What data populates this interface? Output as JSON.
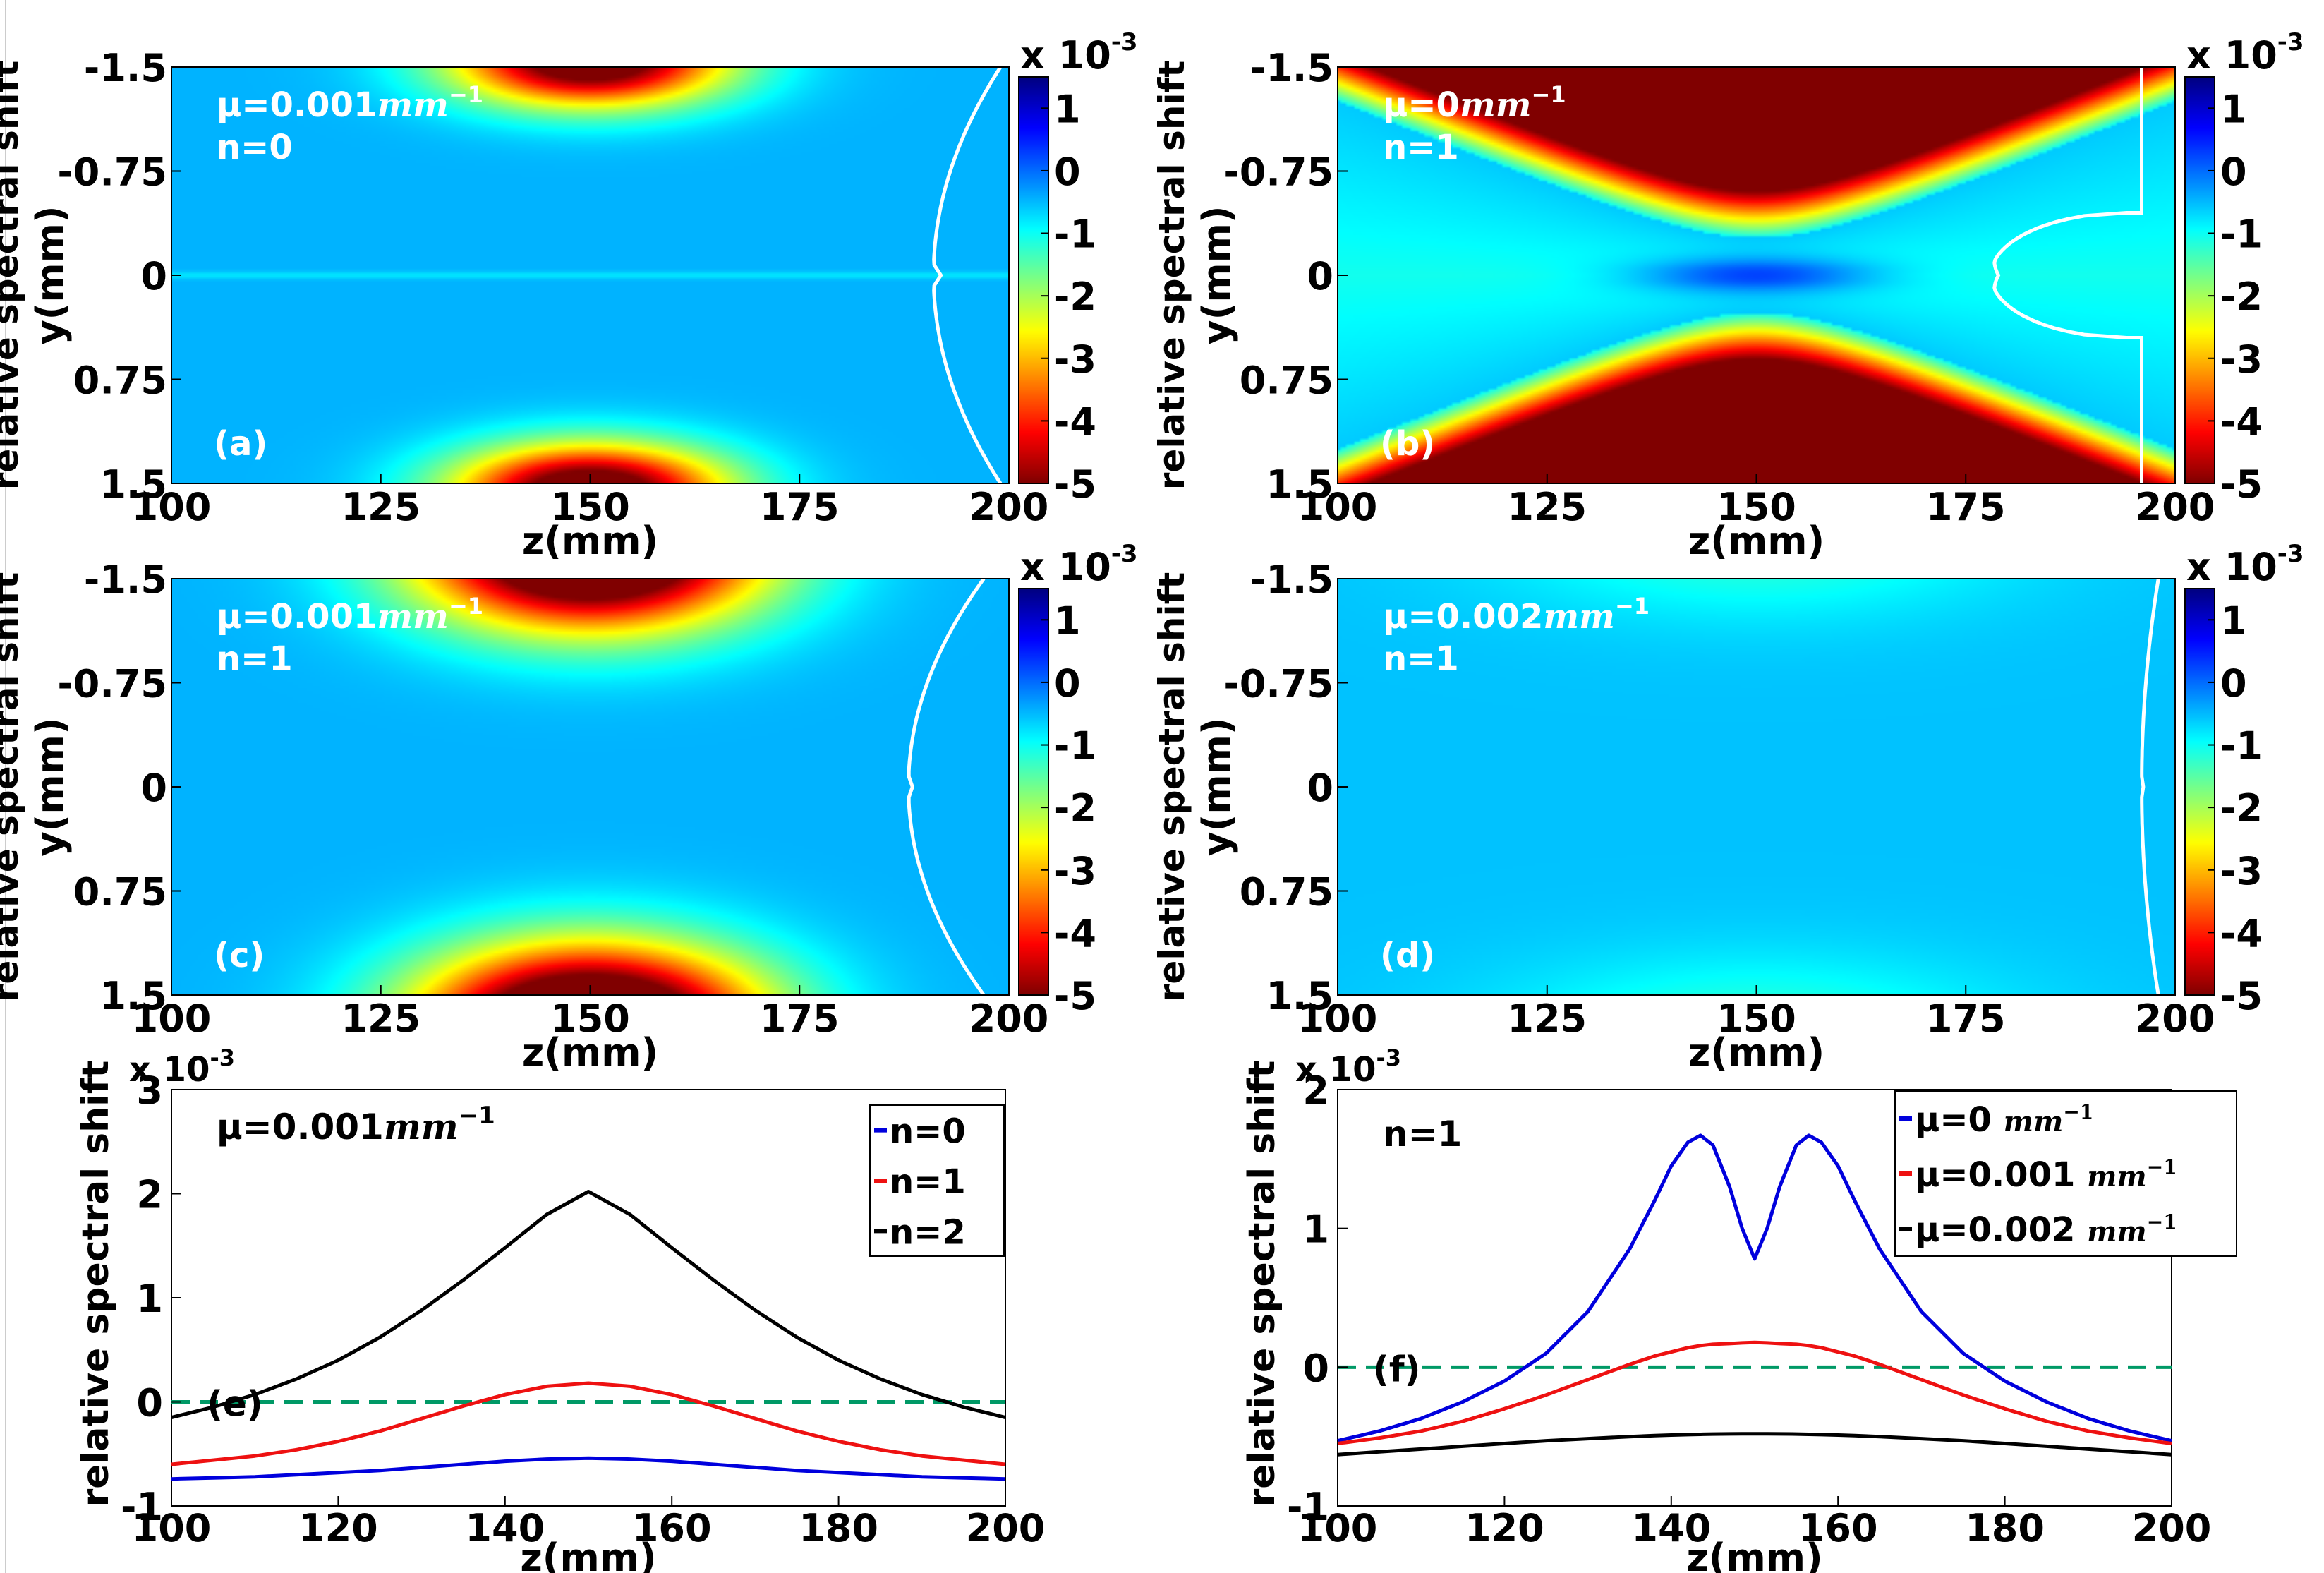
{
  "figure": {
    "colors": {
      "heat_high": "#ffffff",
      "white_contour": "#ffffff",
      "blue": "#0000dd",
      "red": "#ee1111",
      "black": "#000000",
      "zero_line": "#009966"
    },
    "colorbar": {
      "exponent_label": "x 10",
      "exponent_sup": "-3",
      "ticks": [
        "1",
        "0",
        "-1",
        "-2",
        "-3",
        "-4",
        "-5"
      ],
      "tick_values": [
        1,
        0,
        -1,
        -2,
        -3,
        -4,
        -5
      ],
      "range": [
        -5,
        1.5
      ]
    }
  },
  "chart_data": [
    {
      "id": "a",
      "type": "heatmap",
      "panel_label": "(a)",
      "annotation_line1_prefix": "μ=0.001",
      "annotation_line1_unit": "mm",
      "annotation_line1_sup": "−1",
      "annotation_line2": "n=0",
      "xlabel": "z(mm)",
      "ylabel": "y(mm)",
      "outer_ylabel": "relative spectral shift",
      "xticks": [
        "100",
        "125",
        "150",
        "175",
        "200"
      ],
      "xtick_values": [
        100,
        125,
        150,
        175,
        200
      ],
      "yticks": [
        "-1.5",
        "-0.75",
        "0",
        "0.75",
        "1.5"
      ],
      "ytick_values": [
        -1.5,
        -0.75,
        0,
        0.75,
        1.5
      ],
      "xlim": [
        100,
        200
      ],
      "ylim": [
        -1.5,
        1.5
      ],
      "model": {
        "amp": 5.5,
        "wz": 16,
        "base": -0.45,
        "y0": 1.55,
        "sy": 0.33,
        "centerline": 0.35
      },
      "contour": {
        "zc": 191,
        "r0": 0.22,
        "x_at_edge": 199
      }
    },
    {
      "id": "b",
      "type": "heatmap",
      "panel_label": "(b)",
      "annotation_line1_prefix": "μ=0",
      "annotation_line1_unit": "mm",
      "annotation_line1_sup": "−1",
      "annotation_line2": "n=1",
      "xlabel": "z(mm)",
      "ylabel": "y(mm)",
      "outer_ylabel": "relative spectral shift",
      "xticks": [
        "100",
        "125",
        "150",
        "175",
        "200"
      ],
      "xtick_values": [
        100,
        125,
        150,
        175,
        200
      ],
      "yticks": [
        "-1.5",
        "-0.75",
        "0",
        "0.75",
        "1.5"
      ],
      "ytick_values": [
        -1.5,
        -0.75,
        0,
        0.75,
        1.5
      ],
      "xlim": [
        100,
        200
      ],
      "ylim": [
        -1.5,
        1.5
      ],
      "model": {
        "type": "focus",
        "w0": 0.27,
        "zR": 11,
        "core": 1.3
      },
      "contour": {
        "type": "box",
        "z_left": 178,
        "z_right": 196,
        "y_half": 0.45
      }
    },
    {
      "id": "c",
      "type": "heatmap",
      "panel_label": "(c)",
      "annotation_line1_prefix": "μ=0.001",
      "annotation_line1_unit": "mm",
      "annotation_line1_sup": "−1",
      "annotation_line2": "n=1",
      "xlabel": "z(mm)",
      "ylabel": "y(mm)",
      "outer_ylabel": "relative spectral shift",
      "xticks": [
        "100",
        "125",
        "150",
        "175",
        "200"
      ],
      "xtick_values": [
        100,
        125,
        150,
        175,
        200
      ],
      "yticks": [
        "-1.5",
        "-0.75",
        "0",
        "0.75",
        "1.5"
      ],
      "ytick_values": [
        -1.5,
        -0.75,
        0,
        0.75,
        1.5
      ],
      "xlim": [
        100,
        200
      ],
      "ylim": [
        -1.5,
        1.5
      ],
      "model": {
        "amp": 6.8,
        "wz": 20,
        "base": -0.45,
        "y0": 1.7,
        "sy": 0.55,
        "centerline": 0
      },
      "contour": {
        "zc": 188,
        "r0": 0.12,
        "x_at_edge": 197
      }
    },
    {
      "id": "d",
      "type": "heatmap",
      "panel_label": "(d)",
      "annotation_line1_prefix": "μ=0.002",
      "annotation_line1_unit": "mm",
      "annotation_line1_sup": "−1",
      "annotation_line2": "n=1",
      "xlabel": "z(mm)",
      "ylabel": "y(mm)",
      "outer_ylabel": "relative spectral shift",
      "xticks": [
        "100",
        "125",
        "150",
        "175",
        "200"
      ],
      "xtick_values": [
        100,
        125,
        150,
        175,
        200
      ],
      "yticks": [
        "-1.5",
        "-0.75",
        "0",
        "0.75",
        "1.5"
      ],
      "ytick_values": [
        -1.5,
        -0.75,
        0,
        0.75,
        1.5
      ],
      "xlim": [
        100,
        200
      ],
      "ylim": [
        -1.5,
        1.5
      ],
      "model": {
        "amp": 0.75,
        "wz": 30,
        "base": -0.55,
        "y0": 1.8,
        "sy": 0.55,
        "centerline": 0
      },
      "contour": {
        "zc": 196,
        "r0": 0.05,
        "x_at_edge": 198
      }
    },
    {
      "id": "e",
      "type": "line",
      "panel_label": "(e)",
      "annotation_prefix": "μ=0.001",
      "annotation_unit": "mm",
      "annotation_sup": "−1",
      "exponent_label": "x 10",
      "exponent_sup": "-3",
      "xlabel": "z(mm)",
      "ylabel": "relative spectral shift",
      "xticks": [
        "100",
        "120",
        "140",
        "160",
        "180",
        "200"
      ],
      "xtick_values": [
        100,
        120,
        140,
        160,
        180,
        200
      ],
      "yticks": [
        "3",
        "2",
        "1",
        "0",
        "-1"
      ],
      "ytick_values": [
        3,
        2,
        1,
        0,
        -1
      ],
      "xlim": [
        100,
        200
      ],
      "ylim": [
        -1,
        3
      ],
      "x": [
        100,
        105,
        110,
        115,
        120,
        125,
        130,
        135,
        140,
        145,
        150,
        155,
        160,
        165,
        170,
        175,
        180,
        185,
        190,
        195,
        200
      ],
      "series": [
        {
          "name": "n=0",
          "color": "#0000dd",
          "values": [
            -0.74,
            -0.73,
            -0.72,
            -0.7,
            -0.68,
            -0.66,
            -0.63,
            -0.6,
            -0.57,
            -0.55,
            -0.54,
            -0.55,
            -0.57,
            -0.6,
            -0.63,
            -0.66,
            -0.68,
            -0.7,
            -0.72,
            -0.73,
            -0.74
          ]
        },
        {
          "name": "n=1",
          "color": "#ee1111",
          "values": [
            -0.6,
            -0.56,
            -0.52,
            -0.46,
            -0.38,
            -0.28,
            -0.16,
            -0.04,
            0.07,
            0.15,
            0.18,
            0.15,
            0.07,
            -0.04,
            -0.16,
            -0.28,
            -0.38,
            -0.46,
            -0.52,
            -0.56,
            -0.6
          ]
        },
        {
          "name": "n=2",
          "color": "#000000",
          "values": [
            -0.15,
            -0.05,
            0.07,
            0.22,
            0.4,
            0.62,
            0.88,
            1.17,
            1.48,
            1.8,
            2.02,
            1.8,
            1.48,
            1.17,
            0.88,
            0.62,
            0.4,
            0.22,
            0.07,
            -0.05,
            -0.15
          ]
        }
      ],
      "reference_line": 0
    },
    {
      "id": "f",
      "type": "line",
      "panel_label": "(f)",
      "annotation_text": "n=1",
      "exponent_label": "x 10",
      "exponent_sup": "-3",
      "xlabel": "z(mm)",
      "ylabel": "relative spectral shift",
      "xticks": [
        "100",
        "120",
        "140",
        "160",
        "180",
        "200"
      ],
      "xtick_values": [
        100,
        120,
        140,
        160,
        180,
        200
      ],
      "yticks": [
        "2",
        "1",
        "0",
        "-1"
      ],
      "ytick_values": [
        2,
        1,
        0,
        -1
      ],
      "xlim": [
        100,
        200
      ],
      "ylim": [
        -1,
        2
      ],
      "x": [
        100,
        105,
        110,
        115,
        120,
        125,
        130,
        135,
        138,
        140,
        142,
        143.5,
        145,
        147,
        148.5,
        150,
        151.5,
        153,
        155,
        156.5,
        158,
        160,
        162,
        165,
        170,
        175,
        180,
        185,
        190,
        195,
        200
      ],
      "series": [
        {
          "name": "μ=0 ",
          "unit": "mm",
          "sup": "−1",
          "color": "#0000dd",
          "values": [
            -0.53,
            -0.46,
            -0.37,
            -0.25,
            -0.1,
            0.1,
            0.4,
            0.85,
            1.2,
            1.45,
            1.62,
            1.67,
            1.6,
            1.3,
            1.0,
            0.78,
            1.0,
            1.3,
            1.6,
            1.67,
            1.62,
            1.45,
            1.2,
            0.85,
            0.4,
            0.1,
            -0.1,
            -0.25,
            -0.37,
            -0.46,
            -0.53
          ]
        },
        {
          "name": "μ=0.001 ",
          "unit": "mm",
          "sup": "−1",
          "color": "#ee1111",
          "values": [
            -0.55,
            -0.51,
            -0.46,
            -0.39,
            -0.3,
            -0.2,
            -0.09,
            0.02,
            0.08,
            0.11,
            0.14,
            0.155,
            0.165,
            0.17,
            0.175,
            0.178,
            0.175,
            0.17,
            0.165,
            0.155,
            0.14,
            0.11,
            0.08,
            0.02,
            -0.09,
            -0.2,
            -0.3,
            -0.39,
            -0.46,
            -0.51,
            -0.55
          ]
        },
        {
          "name": "μ=0.002 ",
          "unit": "mm",
          "sup": "−1",
          "color": "#000000",
          "values": [
            -0.63,
            -0.61,
            -0.59,
            -0.57,
            -0.55,
            -0.53,
            -0.515,
            -0.5,
            -0.493,
            -0.489,
            -0.486,
            -0.484,
            -0.482,
            -0.481,
            -0.48,
            -0.48,
            -0.48,
            -0.481,
            -0.482,
            -0.484,
            -0.486,
            -0.489,
            -0.493,
            -0.5,
            -0.515,
            -0.53,
            -0.55,
            -0.57,
            -0.59,
            -0.61,
            -0.63
          ]
        }
      ],
      "reference_line": 0
    }
  ]
}
